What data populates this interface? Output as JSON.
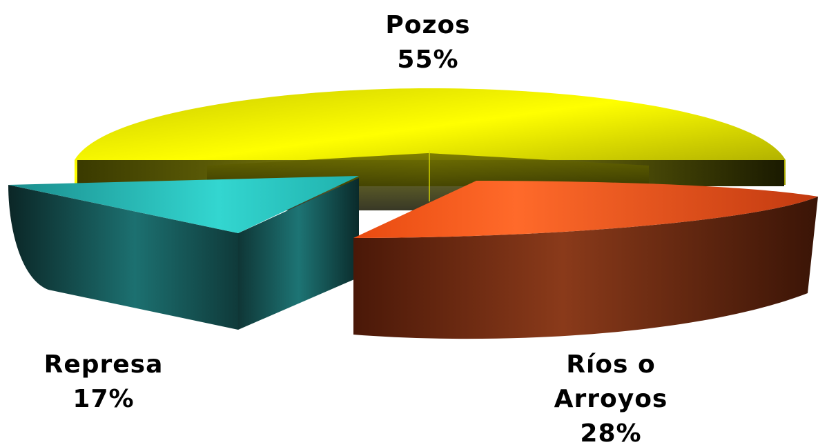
{
  "chart_data": {
    "type": "pie",
    "title": "",
    "slices": [
      {
        "label": "Pozos",
        "percent_label": "55%",
        "value": 55,
        "color": "#e4e400"
      },
      {
        "label": "Ríos o Arroyos",
        "label_lines": [
          "Ríos o",
          "Arroyos"
        ],
        "percent_label": "28%",
        "value": 28,
        "color": "#f25a1e"
      },
      {
        "label": "Represa",
        "percent_label": "17%",
        "value": 17,
        "color": "#1fb8b4"
      }
    ],
    "style": "3d-exploded"
  }
}
